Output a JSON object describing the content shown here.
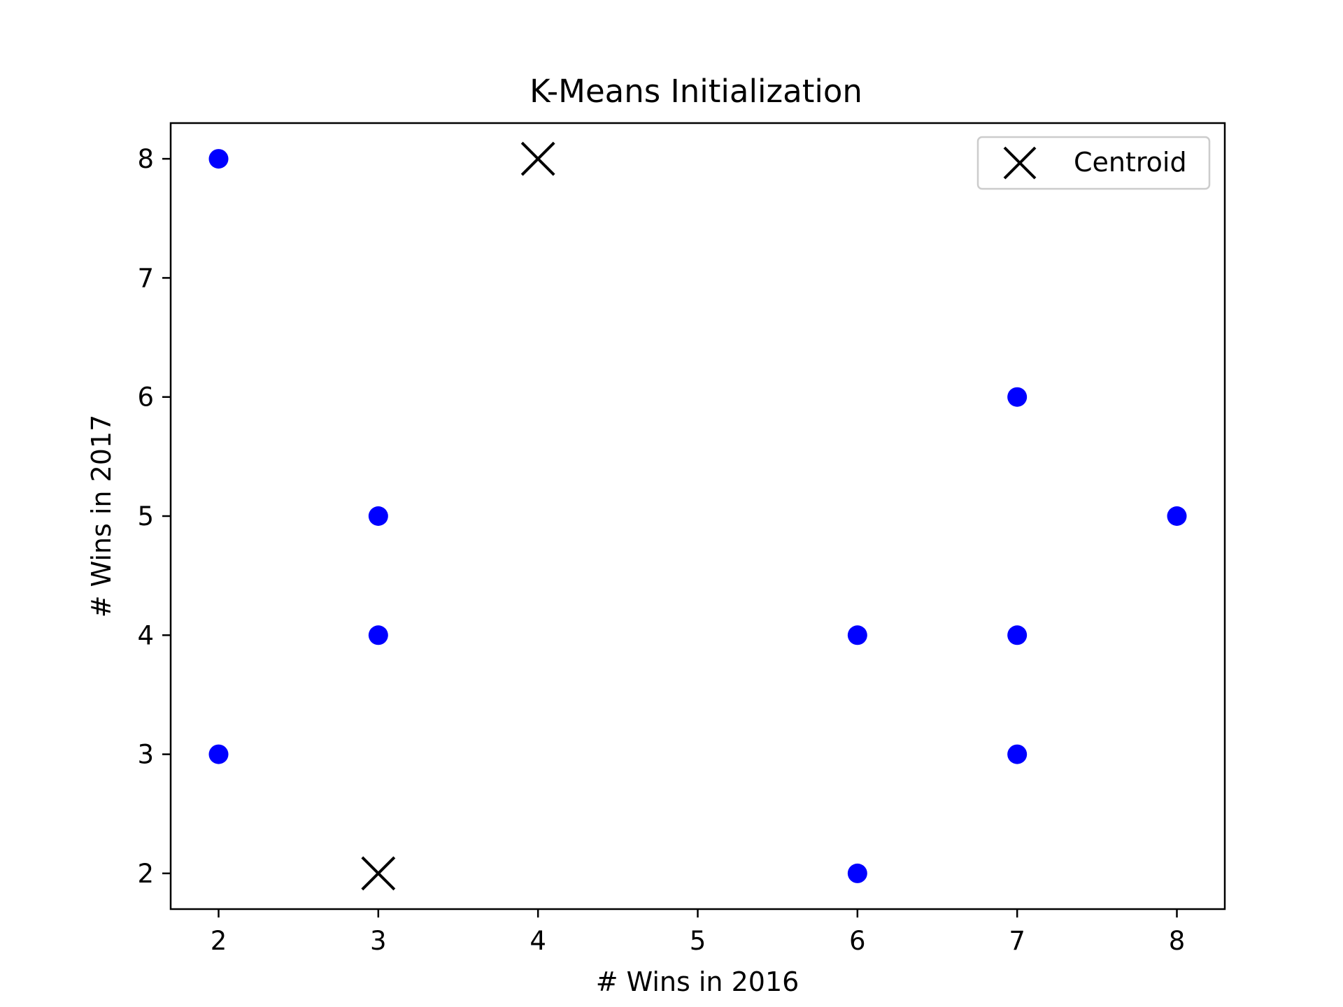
{
  "chart_data": {
    "type": "scatter",
    "title": "K-Means Initialization",
    "xlabel": "# Wins in 2016",
    "ylabel": "# Wins in 2017",
    "xlim": [
      1.7,
      8.3
    ],
    "ylim": [
      1.7,
      8.3
    ],
    "xticks": [
      2,
      3,
      4,
      5,
      6,
      7,
      8
    ],
    "yticks": [
      2,
      3,
      4,
      5,
      6,
      7,
      8
    ],
    "grid": false,
    "legend_position": "top-right",
    "series": [
      {
        "name": "",
        "marker": "circle",
        "color": "#0000ff",
        "points": [
          {
            "x": 2,
            "y": 8
          },
          {
            "x": 2,
            "y": 3
          },
          {
            "x": 3,
            "y": 5
          },
          {
            "x": 3,
            "y": 4
          },
          {
            "x": 6,
            "y": 4
          },
          {
            "x": 6,
            "y": 2
          },
          {
            "x": 7,
            "y": 6
          },
          {
            "x": 7,
            "y": 4
          },
          {
            "x": 7,
            "y": 3
          },
          {
            "x": 8,
            "y": 5
          }
        ]
      },
      {
        "name": "Centroid",
        "marker": "x",
        "color": "#000000",
        "points": [
          {
            "x": 4,
            "y": 8
          },
          {
            "x": 3,
            "y": 2
          }
        ]
      }
    ]
  }
}
